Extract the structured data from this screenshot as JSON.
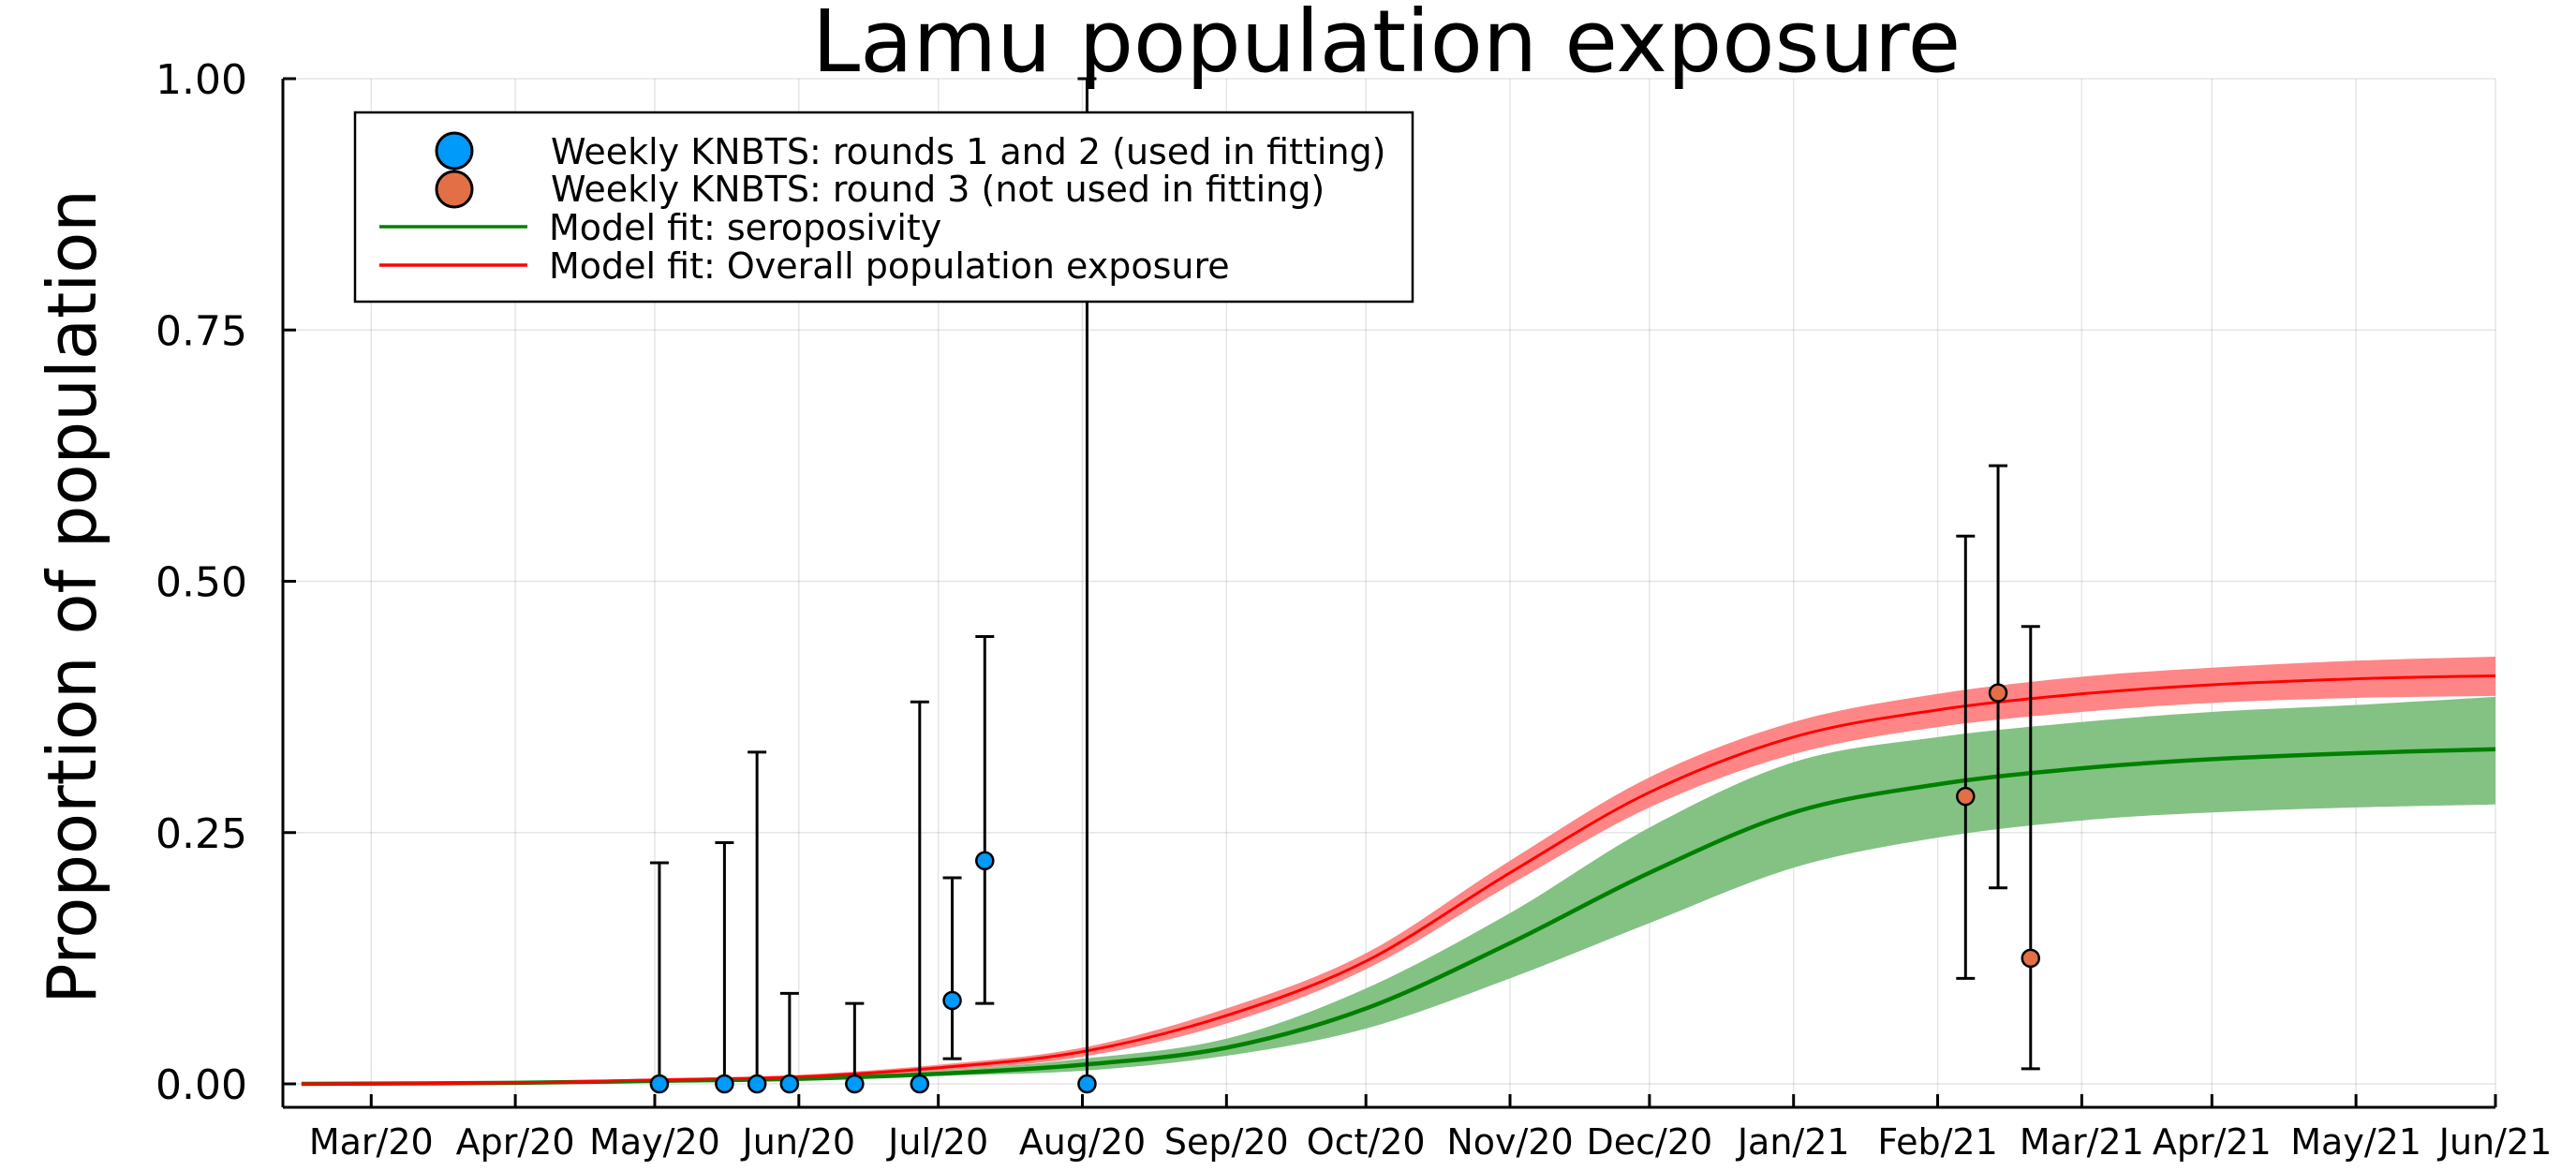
{
  "chart_data": {
    "type": "line",
    "title": "Lamu population exposure",
    "xlabel": "",
    "ylabel": "Proportion of population",
    "ylim": [
      0,
      1
    ],
    "y_ticks": [
      0,
      0.25,
      0.5,
      0.75,
      1.0
    ],
    "y_tick_labels": [
      "0.00",
      "0.25",
      "0.50",
      "0.75",
      "1.00"
    ],
    "x_unit": "days since 2020-02-01",
    "xlim": [
      10,
      486
    ],
    "x_ticks": [
      29,
      60,
      90,
      121,
      151,
      182,
      213,
      243,
      274,
      304,
      335,
      366,
      397,
      425,
      456,
      486
    ],
    "x_tick_labels": [
      "Mar/20",
      "Apr/20",
      "May/20",
      "Jun/20",
      "Jul/20",
      "Aug/20",
      "Sep/20",
      "Oct/20",
      "Nov/20",
      "Dec/20",
      "Jan/21",
      "Feb/21",
      "Mar/21",
      "Apr/21",
      "May/21",
      "Jun/21"
    ],
    "grid": true,
    "legend": {
      "position": "top-left",
      "entries": [
        {
          "label": "Weekly KNBTS: rounds 1 and 2 (used in fitting)",
          "kind": "marker",
          "color": "#009AFA"
        },
        {
          "label": "Weekly KNBTS: round 3 (not used in fitting)",
          "kind": "marker",
          "color": "#E26F46"
        },
        {
          "label": "Model fit: seroposivity",
          "kind": "line",
          "color": "#008000"
        },
        {
          "label": "Model fit: Overall population exposure",
          "kind": "line",
          "color": "#FF0000"
        }
      ]
    },
    "series": [
      {
        "name": "Weekly KNBTS: rounds 1 and 2 (used in fitting)",
        "kind": "scatter",
        "color": "#009AFA",
        "points": [
          {
            "x": 91,
            "y": 0.0,
            "lo": 0.0,
            "hi": 0.22
          },
          {
            "x": 105,
            "y": 0.0,
            "lo": 0.0,
            "hi": 0.24
          },
          {
            "x": 112,
            "y": 0.0,
            "lo": 0.0,
            "hi": 0.33
          },
          {
            "x": 119,
            "y": 0.0,
            "lo": 0.0,
            "hi": 0.09
          },
          {
            "x": 133,
            "y": 0.0,
            "lo": 0.0,
            "hi": 0.08
          },
          {
            "x": 147,
            "y": 0.0,
            "lo": 0.0,
            "hi": 0.38
          },
          {
            "x": 154,
            "y": 0.083,
            "lo": 0.025,
            "hi": 0.205
          },
          {
            "x": 161,
            "y": 0.222,
            "lo": 0.08,
            "hi": 0.445
          },
          {
            "x": 183,
            "y": 0.0,
            "lo": 0.0,
            "hi": 1.0
          }
        ]
      },
      {
        "name": "Weekly KNBTS: round 3 (not used in fitting)",
        "kind": "scatter",
        "color": "#E26F46",
        "points": [
          {
            "x": 372,
            "y": 0.286,
            "lo": 0.105,
            "hi": 0.545
          },
          {
            "x": 379,
            "y": 0.389,
            "lo": 0.195,
            "hi": 0.615
          },
          {
            "x": 386,
            "y": 0.125,
            "lo": 0.015,
            "hi": 0.455
          }
        ]
      },
      {
        "name": "Model fit: seroposivity",
        "kind": "line",
        "color": "#008000",
        "band_color": "#7CBF7C",
        "x": [
          14,
          60,
          90,
          121,
          151,
          182,
          213,
          243,
          274,
          304,
          335,
          366,
          397,
          425,
          456,
          486
        ],
        "y": [
          0.0,
          0.001,
          0.003,
          0.005,
          0.01,
          0.019,
          0.036,
          0.075,
          0.14,
          0.21,
          0.27,
          0.298,
          0.314,
          0.323,
          0.329,
          0.333
        ],
        "lower": [
          0.0,
          0.001,
          0.002,
          0.004,
          0.008,
          0.013,
          0.028,
          0.055,
          0.105,
          0.16,
          0.215,
          0.245,
          0.262,
          0.27,
          0.275,
          0.278
        ],
        "upper": [
          0.0,
          0.001,
          0.004,
          0.007,
          0.013,
          0.025,
          0.045,
          0.095,
          0.17,
          0.255,
          0.32,
          0.345,
          0.36,
          0.37,
          0.377,
          0.385
        ]
      },
      {
        "name": "Model fit: Overall population exposure",
        "kind": "line",
        "color": "#FF0000",
        "band_color": "#FF7F7F",
        "x": [
          14,
          60,
          90,
          121,
          151,
          182,
          213,
          243,
          274,
          304,
          335,
          366,
          397,
          425,
          456,
          486
        ],
        "y": [
          0.0,
          0.001,
          0.004,
          0.007,
          0.016,
          0.032,
          0.068,
          0.122,
          0.21,
          0.29,
          0.345,
          0.372,
          0.388,
          0.397,
          0.403,
          0.406
        ],
        "lower": [
          0.0,
          0.001,
          0.003,
          0.006,
          0.013,
          0.027,
          0.06,
          0.114,
          0.198,
          0.275,
          0.328,
          0.355,
          0.37,
          0.379,
          0.384,
          0.386
        ],
        "upper": [
          0.0,
          0.001,
          0.005,
          0.009,
          0.019,
          0.036,
          0.075,
          0.13,
          0.222,
          0.305,
          0.36,
          0.388,
          0.405,
          0.414,
          0.421,
          0.425
        ]
      }
    ]
  }
}
